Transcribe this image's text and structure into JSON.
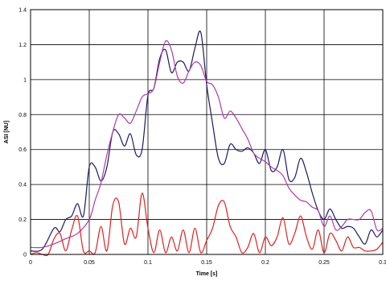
{
  "chart_data": {
    "type": "line",
    "title": "",
    "xlabel": "Time [s]",
    "ylabel": "ASI [NU]",
    "xlim": [
      0,
      0.3
    ],
    "ylim": [
      0,
      1.4
    ],
    "xticks": [
      0,
      0.05,
      0.1,
      0.15,
      0.2,
      0.25,
      0.3
    ],
    "xtick_labels": [
      "0",
      "0.05",
      "0.1",
      "0.15",
      "0.2",
      "0.25",
      "0.3"
    ],
    "yticks": [
      0,
      0.2,
      0.4,
      0.6,
      0.8,
      1,
      1.2,
      1.4
    ],
    "ytick_labels": [
      "0",
      "0.2",
      "0.4",
      "0.6",
      "0.8",
      "1",
      "1.2",
      "1.4"
    ],
    "grid": true,
    "legend": "none",
    "series": [
      {
        "color": "#1a1a66",
        "x": [
          0,
          0.01,
          0.02,
          0.025,
          0.03,
          0.035,
          0.04,
          0.045,
          0.05,
          0.055,
          0.06,
          0.065,
          0.07,
          0.075,
          0.08,
          0.085,
          0.09,
          0.095,
          0.1,
          0.105,
          0.11,
          0.115,
          0.12,
          0.125,
          0.13,
          0.135,
          0.14,
          0.145,
          0.15,
          0.155,
          0.16,
          0.165,
          0.17,
          0.175,
          0.18,
          0.185,
          0.19,
          0.195,
          0.2,
          0.205,
          0.21,
          0.215,
          0.22,
          0.225,
          0.23,
          0.235,
          0.24,
          0.245,
          0.25,
          0.255,
          0.26,
          0.265,
          0.27,
          0.275,
          0.28,
          0.285,
          0.29,
          0.295,
          0.3
        ],
        "values": [
          0.02,
          0.03,
          0.15,
          0.13,
          0.2,
          0.22,
          0.29,
          0.22,
          0.5,
          0.5,
          0.42,
          0.5,
          0.7,
          0.69,
          0.62,
          0.69,
          0.57,
          0.6,
          0.91,
          0.95,
          1.12,
          1.17,
          1.04,
          1.1,
          1.1,
          1.05,
          1.18,
          1.27,
          0.97,
          0.75,
          0.55,
          0.52,
          0.63,
          0.6,
          0.59,
          0.61,
          0.58,
          0.52,
          0.6,
          0.48,
          0.5,
          0.6,
          0.43,
          0.44,
          0.55,
          0.47,
          0.35,
          0.25,
          0.2,
          0.26,
          0.2,
          0.15,
          0.16,
          0.15,
          0.1,
          0.06,
          0.14,
          0.1,
          0.14
        ]
      },
      {
        "color": "#b03aa8",
        "x": [
          0,
          0.01,
          0.02,
          0.03,
          0.04,
          0.05,
          0.055,
          0.06,
          0.065,
          0.07,
          0.075,
          0.08,
          0.085,
          0.09,
          0.095,
          0.1,
          0.105,
          0.11,
          0.115,
          0.12,
          0.125,
          0.13,
          0.135,
          0.14,
          0.145,
          0.15,
          0.155,
          0.16,
          0.165,
          0.17,
          0.175,
          0.18,
          0.185,
          0.19,
          0.195,
          0.2,
          0.205,
          0.21,
          0.215,
          0.22,
          0.225,
          0.23,
          0.235,
          0.24,
          0.245,
          0.25,
          0.255,
          0.26,
          0.265,
          0.27,
          0.275,
          0.28,
          0.285,
          0.29,
          0.295,
          0.3
        ],
        "values": [
          0.04,
          0.04,
          0.06,
          0.09,
          0.12,
          0.2,
          0.31,
          0.41,
          0.57,
          0.7,
          0.8,
          0.78,
          0.75,
          0.82,
          0.9,
          0.92,
          0.95,
          1.1,
          1.22,
          1.17,
          1.02,
          0.98,
          1.05,
          1.1,
          1.08,
          0.99,
          0.97,
          0.9,
          0.78,
          0.82,
          0.78,
          0.72,
          0.66,
          0.58,
          0.55,
          0.53,
          0.5,
          0.48,
          0.45,
          0.38,
          0.34,
          0.31,
          0.3,
          0.27,
          0.25,
          0.16,
          0.22,
          0.14,
          0.16,
          0.2,
          0.2,
          0.2,
          0.24,
          0.25,
          0.14,
          0.15
        ]
      },
      {
        "color": "#e02020",
        "x": [
          0,
          0.005,
          0.01,
          0.015,
          0.02,
          0.025,
          0.03,
          0.035,
          0.04,
          0.045,
          0.05,
          0.055,
          0.06,
          0.065,
          0.07,
          0.075,
          0.08,
          0.085,
          0.09,
          0.095,
          0.1,
          0.105,
          0.11,
          0.115,
          0.12,
          0.125,
          0.13,
          0.135,
          0.14,
          0.145,
          0.15,
          0.155,
          0.16,
          0.165,
          0.17,
          0.175,
          0.18,
          0.185,
          0.19,
          0.195,
          0.2,
          0.205,
          0.21,
          0.215,
          0.22,
          0.225,
          0.23,
          0.235,
          0.24,
          0.245,
          0.25,
          0.255,
          0.26,
          0.265,
          0.27,
          0.275,
          0.28,
          0.285,
          0.29,
          0.295,
          0.3
        ],
        "values": [
          0,
          0.01,
          0,
          0,
          0.09,
          0.12,
          0.02,
          0.14,
          0.22,
          0.02,
          0.02,
          0.01,
          0.16,
          0.02,
          0.28,
          0.3,
          0.06,
          0.15,
          0.1,
          0.35,
          0.15,
          0.01,
          0.14,
          0.01,
          0.1,
          0.02,
          0.14,
          0.01,
          0.15,
          0.01,
          0.08,
          0.15,
          0.28,
          0.3,
          0.16,
          0.1,
          0.01,
          0.04,
          0.12,
          0.01,
          0.1,
          0.05,
          0.1,
          0.21,
          0.06,
          0.12,
          0.22,
          0.1,
          0.03,
          0.14,
          0.01,
          0.12,
          0.08,
          0.02,
          0.1,
          0.04,
          0.04,
          0.02,
          0.02,
          0.03,
          0.07
        ]
      }
    ]
  }
}
